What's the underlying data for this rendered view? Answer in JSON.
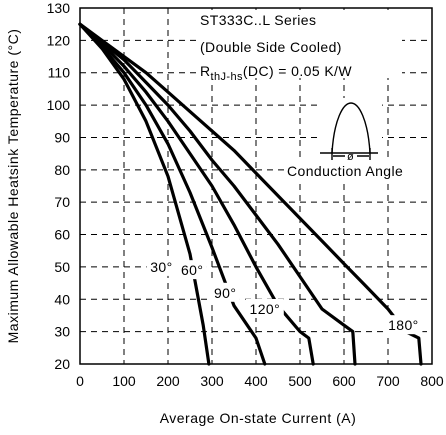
{
  "chart_data": {
    "type": "line",
    "xlabel": "Average On-state Current (A)",
    "ylabel": "Maximum Allowable Heatsink Temperature (°C)",
    "xlim": [
      0,
      800
    ],
    "ylim": [
      20,
      130
    ],
    "x_ticks": [
      0,
      100,
      200,
      300,
      400,
      500,
      600,
      700,
      800
    ],
    "y_ticks": [
      20,
      30,
      40,
      50,
      60,
      70,
      80,
      90,
      100,
      110,
      120,
      130
    ],
    "grid": true,
    "annotations": {
      "series_title": "ST333C..L Series",
      "cooling": "(Double Side Cooled)",
      "rth_main": "R",
      "rth_sub": "thJ-hs",
      "rth_rest": "(DC) = 0.05 K/W",
      "conduction_angle": "Conduction Angle",
      "theta_symbol": "ø"
    },
    "series": [
      {
        "label": "30°",
        "label_at": [
          185,
          50
        ],
        "points": [
          [
            0,
            125
          ],
          [
            50,
            117.5
          ],
          [
            100,
            108
          ],
          [
            150,
            95
          ],
          [
            200,
            78
          ],
          [
            250,
            54
          ],
          [
            280,
            32
          ],
          [
            293,
            20
          ]
        ]
      },
      {
        "label": "60°",
        "label_at": [
          255,
          49
        ],
        "points": [
          [
            0,
            125
          ],
          [
            50,
            118
          ],
          [
            100,
            110
          ],
          [
            150,
            100
          ],
          [
            200,
            88
          ],
          [
            250,
            73
          ],
          [
            300,
            56
          ],
          [
            350,
            38
          ],
          [
            400,
            28
          ],
          [
            420,
            20
          ]
        ]
      },
      {
        "label": "90°",
        "label_at": [
          330,
          42
        ],
        "points": [
          [
            0,
            125
          ],
          [
            50,
            119
          ],
          [
            100,
            112
          ],
          [
            150,
            104
          ],
          [
            200,
            95
          ],
          [
            250,
            85
          ],
          [
            300,
            75
          ],
          [
            350,
            63
          ],
          [
            400,
            50
          ],
          [
            450,
            38
          ],
          [
            500,
            30
          ],
          [
            520,
            28
          ],
          [
            530,
            20
          ]
        ]
      },
      {
        "label": "120°",
        "label_at": [
          420,
          37
        ],
        "points": [
          [
            0,
            125
          ],
          [
            50,
            119.5
          ],
          [
            100,
            114
          ],
          [
            150,
            107
          ],
          [
            200,
            100
          ],
          [
            250,
            92
          ],
          [
            300,
            83
          ],
          [
            350,
            75
          ],
          [
            400,
            66
          ],
          [
            450,
            57
          ],
          [
            500,
            47
          ],
          [
            550,
            37
          ],
          [
            600,
            32
          ],
          [
            620,
            30
          ],
          [
            625,
            20
          ]
        ]
      },
      {
        "label": "180°",
        "label_at": [
          735,
          32
        ],
        "points": [
          [
            0,
            125
          ],
          [
            50,
            120
          ],
          [
            100,
            115
          ],
          [
            150,
            110
          ],
          [
            200,
            104
          ],
          [
            250,
            98
          ],
          [
            300,
            92
          ],
          [
            350,
            86
          ],
          [
            400,
            79
          ],
          [
            450,
            72
          ],
          [
            500,
            65
          ],
          [
            550,
            58
          ],
          [
            600,
            51
          ],
          [
            650,
            44
          ],
          [
            700,
            37
          ],
          [
            740,
            30
          ],
          [
            770,
            28
          ],
          [
            775,
            20
          ]
        ]
      }
    ]
  }
}
